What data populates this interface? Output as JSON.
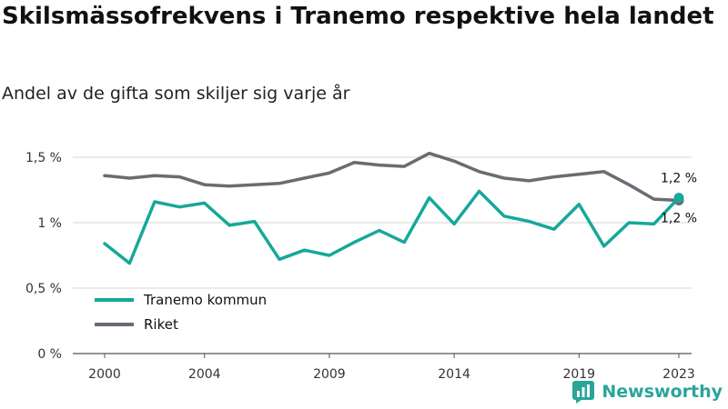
{
  "header": {
    "title": "Skilsmässofrekvens i Tranemo respektive hela landet",
    "subtitle": "Andel av de gifta som skiljer sig varje år"
  },
  "brand": {
    "name": "Newsworthy",
    "icon": "bar-chart-logo-icon",
    "color": "#2aa59a"
  },
  "chart_data": {
    "type": "line",
    "title": "Skilsmässofrekvens i Tranemo respektive hela landet",
    "subtitle": "Andel av de gifta som skiljer sig varje år",
    "xlabel": "",
    "ylabel": "",
    "x": [
      2000,
      2001,
      2002,
      2003,
      2004,
      2005,
      2006,
      2007,
      2008,
      2009,
      2010,
      2011,
      2012,
      2013,
      2014,
      2015,
      2016,
      2017,
      2018,
      2019,
      2020,
      2021,
      2022,
      2023
    ],
    "x_ticks": [
      2000,
      2004,
      2009,
      2014,
      2019,
      2023
    ],
    "x_tick_labels": [
      "2000",
      "2004",
      "2009",
      "2014",
      "2019",
      "2023"
    ],
    "ylim": [
      0,
      1.5
    ],
    "y_ticks": [
      0,
      0.5,
      1,
      1.5
    ],
    "y_tick_labels": [
      "0 %",
      "0,5 %",
      "1 %",
      "1,5 %"
    ],
    "grid": "horizontal",
    "legend_position": "bottom-left",
    "series": [
      {
        "name": "Tranemo kommun",
        "color": "#16a89a",
        "values": [
          0.84,
          0.69,
          1.16,
          1.12,
          1.15,
          0.98,
          1.01,
          0.72,
          0.79,
          0.75,
          0.85,
          0.94,
          0.85,
          1.19,
          0.99,
          1.24,
          1.05,
          1.01,
          0.95,
          1.14,
          0.82,
          1.0,
          0.99,
          1.19
        ],
        "end_label": "1,2 %"
      },
      {
        "name": "Riket",
        "color": "#6b6b73",
        "values": [
          1.36,
          1.34,
          1.36,
          1.35,
          1.29,
          1.28,
          1.29,
          1.3,
          1.34,
          1.38,
          1.46,
          1.44,
          1.43,
          1.53,
          1.47,
          1.39,
          1.34,
          1.32,
          1.35,
          1.37,
          1.39,
          1.29,
          1.18,
          1.17
        ],
        "end_label": "1,2 %"
      }
    ]
  }
}
